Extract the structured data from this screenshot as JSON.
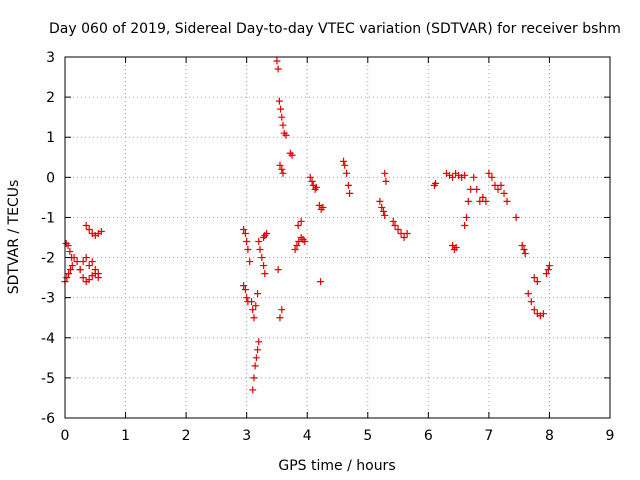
{
  "chart_data": {
    "type": "scatter",
    "title": "Day 060 of 2019, Sidereal Day-to-day VTEC variation (SDTVAR) for receiver bshm",
    "xlabel": "GPS time / hours",
    "ylabel": "SDTVAR / TECUs",
    "xlim": [
      0,
      9
    ],
    "ylim": [
      -6,
      3
    ],
    "x_ticks": [
      "0",
      "1",
      "2",
      "3",
      "4",
      "5",
      "6",
      "7",
      "8",
      "9"
    ],
    "y_ticks": [
      "3",
      "2",
      "1",
      "0",
      "-1",
      "-2",
      "-3",
      "-4",
      "-5",
      "-6"
    ],
    "grid": true,
    "marker": "plus",
    "color": "#e00000",
    "series": [
      {
        "segments": [
          {
            "x": [
              0.0,
              0.03,
              0.06,
              0.09,
              0.12
            ],
            "y": [
              -2.6,
              -2.5,
              -2.4,
              -2.3,
              -2.2
            ]
          },
          {
            "x": [
              0.02,
              0.05,
              0.08,
              0.11
            ],
            "y": [
              -1.65,
              -1.7,
              -1.85,
              -2.0
            ]
          },
          {
            "x": [
              0.15,
              0.2,
              0.25,
              0.3,
              0.35,
              0.4,
              0.45,
              0.5,
              0.55
            ],
            "y": [
              -2.0,
              -2.1,
              -2.3,
              -2.5,
              -2.6,
              -2.55,
              -2.45,
              -2.4,
              -2.5
            ]
          },
          {
            "x": [
              0.25,
              0.3,
              0.35,
              0.4,
              0.45,
              0.5,
              0.55
            ],
            "y": [
              -2.3,
              -2.1,
              -2.0,
              -2.2,
              -2.1,
              -2.3,
              -2.4
            ]
          },
          {
            "x": [
              0.35,
              0.4,
              0.45,
              0.5,
              0.55,
              0.6
            ],
            "y": [
              -1.2,
              -1.3,
              -1.4,
              -1.45,
              -1.4,
              -1.35
            ]
          },
          {
            "x": [
              2.95,
              2.98,
              3.0,
              3.02,
              3.05
            ],
            "y": [
              -1.3,
              -1.4,
              -1.6,
              -1.8,
              -2.1
            ]
          },
          {
            "x": [
              2.95,
              2.98,
              3.0,
              3.02
            ],
            "y": [
              -2.7,
              -2.8,
              -3.0,
              -3.1
            ]
          },
          {
            "x": [
              3.08,
              3.1,
              3.12,
              3.15,
              3.18
            ],
            "y": [
              -3.1,
              -3.3,
              -3.5,
              -3.2,
              -2.9
            ]
          },
          {
            "x": [
              3.1,
              3.12,
              3.14,
              3.16,
              3.18,
              3.2
            ],
            "y": [
              -5.3,
              -5.0,
              -4.7,
              -4.5,
              -4.3,
              -4.1
            ]
          },
          {
            "x": [
              3.2,
              3.22,
              3.25,
              3.28,
              3.3
            ],
            "y": [
              -1.6,
              -1.8,
              -2.0,
              -2.2,
              -2.4
            ]
          },
          {
            "x": [
              3.28,
              3.3,
              3.33
            ],
            "y": [
              -1.5,
              -1.45,
              -1.4
            ]
          },
          {
            "x": [
              3.5,
              3.52,
              3.54,
              3.56,
              3.58,
              3.6,
              3.62,
              3.65
            ],
            "y": [
              2.9,
              2.7,
              1.9,
              1.7,
              1.5,
              1.3,
              1.1,
              1.05
            ]
          },
          {
            "x": [
              3.55,
              3.58,
              3.6
            ],
            "y": [
              0.3,
              0.2,
              0.1
            ]
          },
          {
            "x": [
              3.72,
              3.75
            ],
            "y": [
              0.6,
              0.55
            ]
          },
          {
            "x": [
              3.55,
              3.58
            ],
            "y": [
              -3.5,
              -3.3
            ]
          },
          {
            "x": [
              3.52
            ],
            "y": [
              -2.3
            ]
          },
          {
            "x": [
              3.8,
              3.83,
              3.86,
              3.9,
              3.93,
              3.96
            ],
            "y": [
              -1.8,
              -1.7,
              -1.6,
              -1.5,
              -1.55,
              -1.6
            ]
          },
          {
            "x": [
              3.85,
              3.9
            ],
            "y": [
              -1.2,
              -1.1
            ]
          },
          {
            "x": [
              4.05,
              4.08,
              4.1,
              4.13,
              4.15
            ],
            "y": [
              0.0,
              -0.1,
              -0.2,
              -0.3,
              -0.25
            ]
          },
          {
            "x": [
              4.2,
              4.23,
              4.26
            ],
            "y": [
              -0.7,
              -0.8,
              -0.75
            ]
          },
          {
            "x": [
              4.22
            ],
            "y": [
              -2.6
            ]
          },
          {
            "x": [
              4.6,
              4.62,
              4.65,
              4.68,
              4.7
            ],
            "y": [
              0.4,
              0.3,
              0.1,
              -0.2,
              -0.4
            ]
          },
          {
            "x": [
              5.2,
              5.23,
              5.26,
              5.28
            ],
            "y": [
              -0.6,
              -0.75,
              -0.85,
              -0.95
            ]
          },
          {
            "x": [
              5.28,
              5.3
            ],
            "y": [
              0.1,
              -0.1
            ]
          },
          {
            "x": [
              5.42,
              5.45,
              5.5,
              5.55,
              5.6,
              5.65
            ],
            "y": [
              -1.1,
              -1.2,
              -1.3,
              -1.4,
              -1.5,
              -1.4
            ]
          },
          {
            "x": [
              6.1,
              6.12
            ],
            "y": [
              -0.2,
              -0.15
            ]
          },
          {
            "x": [
              6.3,
              6.35,
              6.4,
              6.45,
              6.5,
              6.55,
              6.6
            ],
            "y": [
              0.1,
              0.05,
              0.0,
              0.1,
              0.05,
              0.0,
              0.05
            ]
          },
          {
            "x": [
              6.4,
              6.43,
              6.46
            ],
            "y": [
              -1.7,
              -1.8,
              -1.75
            ]
          },
          {
            "x": [
              6.6,
              6.63,
              6.66,
              6.7,
              6.75,
              6.8,
              6.85
            ],
            "y": [
              -1.2,
              -1.0,
              -0.6,
              -0.3,
              0.0,
              -0.3,
              -0.6
            ]
          },
          {
            "x": [
              6.9,
              6.95,
              7.0,
              7.05,
              7.1,
              7.15,
              7.2,
              7.25,
              7.3
            ],
            "y": [
              -0.5,
              -0.6,
              0.1,
              0.0,
              -0.2,
              -0.3,
              -0.2,
              -0.4,
              -0.6
            ]
          },
          {
            "x": [
              7.45
            ],
            "y": [
              -1.0
            ]
          },
          {
            "x": [
              7.55,
              7.58,
              7.6
            ],
            "y": [
              -1.7,
              -1.8,
              -1.9
            ]
          },
          {
            "x": [
              7.65,
              7.7,
              7.75,
              7.8,
              7.85,
              7.9
            ],
            "y": [
              -2.9,
              -3.1,
              -3.3,
              -3.4,
              -3.45,
              -3.4
            ]
          },
          {
            "x": [
              7.75,
              7.8
            ],
            "y": [
              -2.5,
              -2.6
            ]
          },
          {
            "x": [
              7.95,
              7.98,
              8.0
            ],
            "y": [
              -2.4,
              -2.3,
              -2.2
            ]
          }
        ]
      }
    ]
  }
}
